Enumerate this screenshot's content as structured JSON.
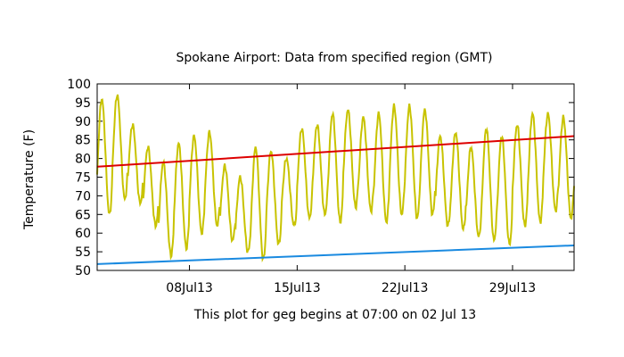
{
  "chart_data": {
    "type": "line",
    "title": "Spokane Airport:  Data from specified region (GMT)",
    "xlabel": "This plot for geg begins at 07:00 on 02 Jul 13",
    "ylabel": "Temperature (F)",
    "x_unit": "days",
    "xlim": [
      0,
      31
    ],
    "ylim": [
      50,
      100
    ],
    "y_ticks": [
      50,
      55,
      60,
      65,
      70,
      75,
      80,
      85,
      90,
      95,
      100
    ],
    "x_ticks": [
      {
        "value": 6,
        "label": "08Jul13"
      },
      {
        "value": 13,
        "label": "15Jul13"
      },
      {
        "value": 20,
        "label": "22Jul13"
      },
      {
        "value": 27,
        "label": "29Jul13"
      }
    ],
    "grid": false,
    "colors": {
      "observed": "#c8c300",
      "normal_high": "#dd0000",
      "normal_low": "#1a8ae0"
    },
    "series": [
      {
        "key": "observed",
        "daily_max": [
          96,
          97,
          89,
          83,
          79,
          84,
          86,
          87,
          78,
          75,
          83,
          82,
          80,
          88,
          89,
          92,
          93,
          91,
          92,
          94,
          94,
          93,
          86,
          87,
          83,
          88,
          86,
          89,
          92,
          92,
          91
        ],
        "daily_min": [
          65,
          69,
          68,
          62,
          54,
          56,
          60,
          62,
          58,
          55,
          53,
          57,
          62,
          64,
          65,
          63,
          67,
          66,
          63,
          65,
          64,
          65,
          62,
          61,
          59,
          58,
          57,
          62,
          63,
          66,
          64
        ]
      },
      {
        "key": "normal_high",
        "x": [
          0,
          31
        ],
        "y": [
          77.8,
          86
        ]
      },
      {
        "key": "normal_low",
        "x": [
          0,
          31
        ],
        "y": [
          51.7,
          56.7
        ]
      }
    ]
  }
}
